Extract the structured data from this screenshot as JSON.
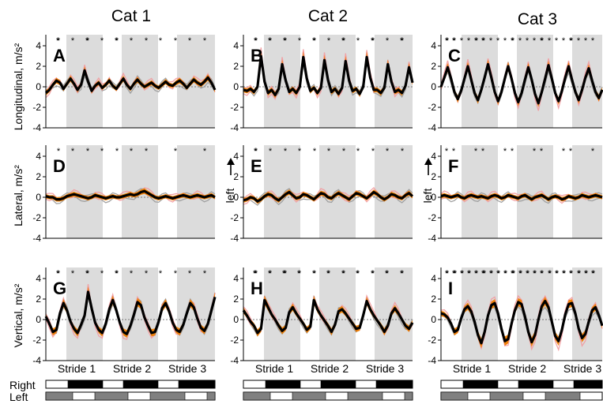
{
  "columns": [
    {
      "title": "Cat 1",
      "left_label": ""
    },
    {
      "title": "Cat 2",
      "left_label": "left"
    },
    {
      "title": "Cat 3",
      "left_label": "left"
    }
  ],
  "rows": [
    {
      "ylabel": "Longitudinal, m/s²"
    },
    {
      "ylabel": "Lateral, m/s²"
    },
    {
      "ylabel": "Vertical, m/s²"
    }
  ],
  "panel_letters": [
    "A",
    "B",
    "C",
    "D",
    "E",
    "F",
    "G",
    "H",
    "I"
  ],
  "stride_labels": [
    "Stride 1",
    "Stride 2",
    "Stride 3"
  ],
  "limb_labels": {
    "right": "Right",
    "left": "Left"
  },
  "colors": {
    "shade": "#dcdcdc",
    "mean": "#000000",
    "band": "#f07d00",
    "trial_gray": "#999999",
    "trial_pink": "#f29a9f"
  },
  "chart_data": [
    {
      "panel": "A",
      "type": "line",
      "ylabel": "Longitudinal, m/s²",
      "ylim": [
        -4,
        4
      ],
      "yticks": [
        -4,
        -2,
        0,
        2,
        4
      ],
      "mean": [
        -0.6,
        -0.3,
        0.2,
        0.6,
        0.4,
        -0.2,
        0.3,
        0.8,
        0.3,
        -0.3,
        0.2,
        1.6,
        0.5,
        -0.4,
        0.1,
        0.4,
        -0.1,
        0.2,
        0.6,
        0.1,
        -0.2,
        0.3,
        0.8,
        0.2,
        -0.2,
        0.3,
        0.7,
        0.3,
        0.0,
        0.2,
        0.4,
        0.1,
        -0.1,
        0.2,
        0.5,
        0.2,
        0.1,
        0.4,
        0.6,
        0.3,
        -0.1,
        0.3,
        0.7,
        0.4,
        0.2,
        0.5,
        0.9,
        0.4,
        -0.3
      ],
      "star_count": 14
    },
    {
      "panel": "B",
      "type": "line",
      "ylabel": "Longitudinal, m/s²",
      "ylim": [
        -4,
        4
      ],
      "yticks": [
        -4,
        -2,
        0,
        2,
        4
      ],
      "mean": [
        -0.3,
        -0.4,
        -0.2,
        -0.5,
        0.0,
        3.0,
        0.5,
        -0.6,
        -0.3,
        -0.8,
        -0.2,
        2.2,
        0.6,
        -0.5,
        -0.2,
        -0.6,
        0.0,
        2.9,
        0.8,
        -0.4,
        -0.1,
        -0.6,
        -0.1,
        2.6,
        0.7,
        -0.5,
        -0.2,
        -0.7,
        -0.1,
        2.5,
        0.6,
        -0.4,
        -0.2,
        -0.7,
        0.0,
        2.9,
        0.9,
        -0.3,
        -0.3,
        -0.6,
        -0.1,
        2.2,
        0.5,
        -0.5,
        -0.3,
        -0.6,
        0.1,
        1.9,
        0.4
      ],
      "star_count": 18
    },
    {
      "panel": "C",
      "type": "line",
      "ylabel": "Longitudinal, m/s²",
      "ylim": [
        -4,
        4
      ],
      "yticks": [
        -4,
        -2,
        0,
        2,
        4
      ],
      "mean": [
        0.0,
        0.9,
        1.9,
        0.8,
        -0.5,
        -1.2,
        -0.4,
        0.8,
        2.0,
        0.7,
        -0.6,
        -1.3,
        -0.3,
        0.9,
        2.2,
        0.9,
        -0.5,
        -1.4,
        -0.5,
        0.8,
        2.0,
        0.8,
        -0.6,
        -1.5,
        -0.6,
        0.7,
        1.9,
        0.7,
        -0.7,
        -1.6,
        -0.5,
        0.8,
        2.1,
        0.8,
        -0.6,
        -1.4,
        -0.4,
        0.9,
        2.0,
        0.7,
        -0.5,
        -1.3,
        -0.3,
        0.9,
        1.8,
        0.6,
        -0.5,
        -1.1,
        -0.3
      ],
      "star_count": 28
    },
    {
      "panel": "D",
      "type": "line",
      "ylabel": "Lateral, m/s²",
      "ylim": [
        -4,
        4
      ],
      "yticks": [
        -4,
        -2,
        0,
        2,
        4
      ],
      "mean": [
        0.1,
        0.0,
        0.0,
        -0.2,
        -0.2,
        -0.1,
        0.1,
        0.2,
        0.3,
        0.2,
        0.1,
        0.0,
        -0.1,
        0.0,
        0.2,
        0.1,
        0.0,
        -0.1,
        0.0,
        0.1,
        0.0,
        0.0,
        0.1,
        0.2,
        0.3,
        0.2,
        0.3,
        0.5,
        0.6,
        0.4,
        0.2,
        0.0,
        -0.1,
        0.0,
        0.1,
        0.0,
        -0.1,
        0.0,
        0.1,
        0.2,
        0.1,
        0.0,
        0.1,
        0.2,
        0.1,
        0.0,
        0.1,
        0.2,
        0.0
      ],
      "star_count": 9
    },
    {
      "panel": "E",
      "type": "line",
      "ylabel": "Lateral, m/s²",
      "ylim": [
        -4,
        4
      ],
      "yticks": [
        -4,
        -2,
        0,
        2,
        4
      ],
      "mean": [
        -0.3,
        -0.2,
        0.0,
        -0.1,
        -0.4,
        -0.2,
        0.1,
        0.3,
        0.2,
        -0.1,
        -0.3,
        0.0,
        0.3,
        0.5,
        0.2,
        -0.1,
        0.0,
        0.3,
        0.2,
        0.0,
        -0.2,
        0.1,
        0.4,
        0.3,
        0.0,
        -0.1,
        0.2,
        0.4,
        0.2,
        0.0,
        -0.2,
        0.1,
        0.4,
        0.3,
        0.1,
        -0.1,
        0.2,
        0.5,
        0.3,
        0.0,
        -0.2,
        0.0,
        0.3,
        0.2,
        0.0,
        -0.1,
        0.2,
        0.4,
        0.1
      ],
      "star_count": 12
    },
    {
      "panel": "F",
      "type": "line",
      "ylabel": "Lateral, m/s²",
      "ylim": [
        -4,
        4
      ],
      "yticks": [
        -4,
        -2,
        0,
        2,
        4
      ],
      "mean": [
        0.1,
        0.2,
        0.1,
        0.0,
        0.1,
        0.2,
        0.0,
        -0.1,
        0.1,
        0.2,
        0.1,
        0.0,
        0.1,
        0.0,
        -0.1,
        0.1,
        0.2,
        0.1,
        -0.1,
        0.0,
        0.2,
        0.1,
        0.0,
        -0.1,
        0.1,
        0.2,
        0.0,
        -0.2,
        0.0,
        0.1,
        0.2,
        0.0,
        -0.2,
        0.0,
        0.1,
        0.0,
        -0.2,
        -0.1,
        0.1,
        0.0,
        -0.1,
        0.0,
        0.2,
        0.1,
        0.0,
        0.1,
        0.2,
        0.1,
        0.0
      ],
      "star_count": 11
    },
    {
      "panel": "G",
      "type": "line",
      "ylabel": "Vertical, m/s²",
      "ylim": [
        -4,
        4
      ],
      "yticks": [
        -4,
        -2,
        0,
        2,
        4
      ],
      "mean": [
        0.3,
        -0.4,
        -1.2,
        -1.0,
        0.6,
        1.6,
        0.9,
        -0.2,
        -0.9,
        -1.3,
        -0.5,
        0.4,
        2.7,
        1.1,
        -0.3,
        -1.0,
        -1.3,
        -0.4,
        1.0,
        1.9,
        0.9,
        -0.3,
        -1.2,
        -1.4,
        -0.6,
        0.5,
        1.7,
        1.4,
        0.2,
        -0.6,
        -1.3,
        -1.2,
        -0.2,
        1.1,
        1.6,
        0.8,
        -0.3,
        -1.0,
        -1.2,
        -0.5,
        0.6,
        1.6,
        1.2,
        0.1,
        -0.8,
        -1.1,
        -0.4,
        0.9,
        2.2
      ],
      "star_count": 14
    },
    {
      "panel": "H",
      "type": "line",
      "ylabel": "Vertical, m/s²",
      "ylim": [
        -4,
        4
      ],
      "yticks": [
        -4,
        -2,
        0,
        2,
        4
      ],
      "mean": [
        0.9,
        0.4,
        -0.2,
        -0.6,
        -1.3,
        -0.9,
        1.9,
        1.2,
        0.5,
        0.0,
        -0.6,
        -1.1,
        -0.8,
        0.7,
        1.2,
        0.6,
        0.1,
        -0.4,
        -1.0,
        -0.7,
        1.9,
        1.0,
        0.4,
        -0.1,
        -0.6,
        -1.2,
        -0.5,
        0.8,
        1.0,
        0.6,
        0.1,
        -0.4,
        -0.9,
        -0.8,
        0.4,
        1.8,
        1.0,
        0.4,
        -0.1,
        -0.6,
        -1.2,
        -0.6,
        0.6,
        1.1,
        0.6,
        0.0,
        -0.6,
        -0.9,
        -0.3
      ],
      "star_count": 24
    },
    {
      "panel": "I",
      "type": "line",
      "ylabel": "Vertical, m/s²",
      "ylim": [
        -4,
        4
      ],
      "yticks": [
        -4,
        -2,
        0,
        2,
        4
      ],
      "mean": [
        0.6,
        0.5,
        0.2,
        -0.4,
        -1.2,
        -1.0,
        0.1,
        1.0,
        1.3,
        0.8,
        -0.2,
        -1.5,
        -2.3,
        -1.2,
        0.4,
        1.4,
        1.6,
        0.6,
        -0.9,
        -2.1,
        -1.9,
        -0.4,
        0.9,
        1.7,
        1.5,
        0.3,
        -1.2,
        -2.2,
        -1.5,
        0.0,
        1.3,
        1.8,
        1.2,
        -0.2,
        -1.6,
        -2.1,
        -1.0,
        0.5,
        1.5,
        1.6,
        0.6,
        -0.9,
        -1.8,
        -1.4,
        -0.2,
        0.9,
        1.2,
        0.4,
        -0.6
      ],
      "star_count": 45
    }
  ]
}
